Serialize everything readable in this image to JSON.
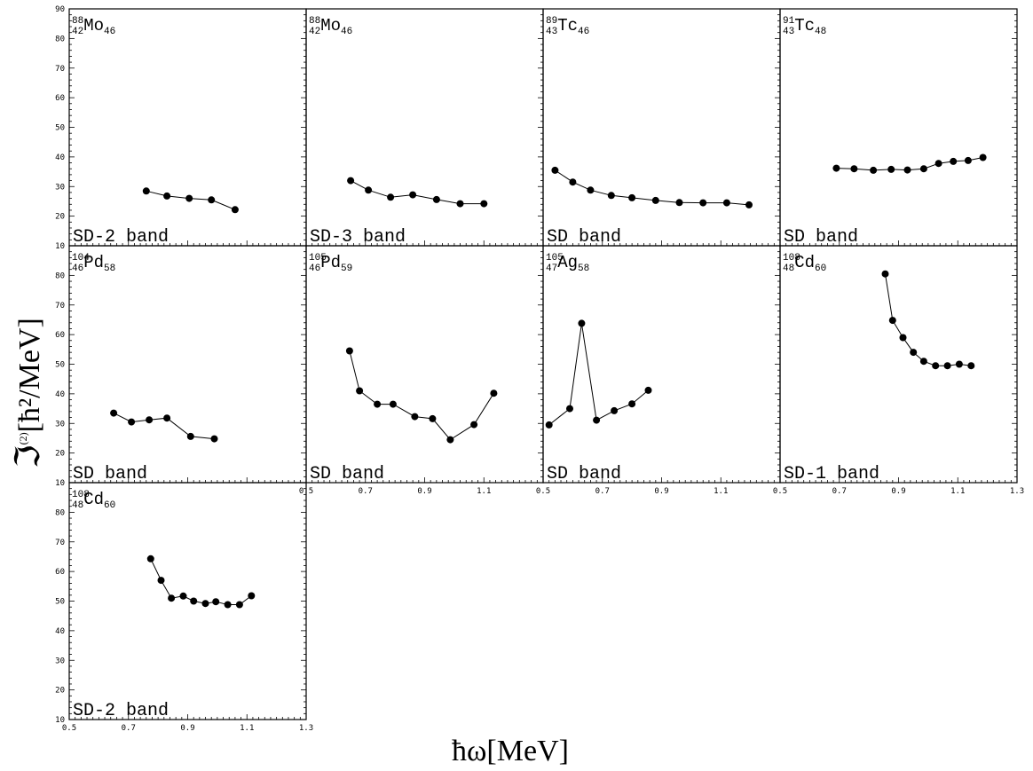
{
  "figure": {
    "xlabel": "ħω[MeV]",
    "ylabel_main": "ℑ",
    "ylabel_sup": "(2)",
    "ylabel_rest": "[ħ²/MeV]",
    "x_ticks": [
      "0.5",
      "0.7",
      "0.9",
      "1.1",
      "1.3"
    ],
    "y_ticks_top": [
      "10",
      "20",
      "30",
      "40",
      "50",
      "60",
      "70",
      "80",
      "90"
    ],
    "y_ticks": [
      "10",
      "20",
      "30",
      "40",
      "50",
      "60",
      "70",
      "80"
    ]
  },
  "chart_data": [
    {
      "type": "line",
      "nucleus": {
        "A": "88",
        "Z": "42",
        "sym": "Mo",
        "N": "46"
      },
      "band": "SD-2 band",
      "xlim": [
        0.5,
        1.3
      ],
      "ylim": [
        10,
        90
      ],
      "x": [
        0.76,
        0.83,
        0.905,
        0.98,
        1.06
      ],
      "y": [
        28.5,
        26.8,
        26.0,
        25.5,
        22.2
      ]
    },
    {
      "type": "line",
      "nucleus": {
        "A": "88",
        "Z": "42",
        "sym": "Mo",
        "N": "46"
      },
      "band": "SD-3 band",
      "xlim": [
        0.5,
        1.3
      ],
      "ylim": [
        10,
        90
      ],
      "x": [
        0.65,
        0.71,
        0.785,
        0.86,
        0.94,
        1.02,
        1.1
      ],
      "y": [
        32.0,
        28.8,
        26.4,
        27.2,
        25.6,
        24.2,
        24.2
      ]
    },
    {
      "type": "line",
      "nucleus": {
        "A": "89",
        "Z": "43",
        "sym": "Tc",
        "N": "46"
      },
      "band": "SD band",
      "xlim": [
        0.5,
        1.3
      ],
      "ylim": [
        10,
        90
      ],
      "x": [
        0.54,
        0.6,
        0.66,
        0.73,
        0.8,
        0.88,
        0.96,
        1.04,
        1.12,
        1.195
      ],
      "y": [
        35.5,
        31.5,
        28.8,
        27.0,
        26.2,
        25.3,
        24.6,
        24.5,
        24.5,
        23.8
      ]
    },
    {
      "type": "line",
      "nucleus": {
        "A": "91",
        "Z": "43",
        "sym": "Tc",
        "N": "48"
      },
      "band": "SD band",
      "xlim": [
        0.5,
        1.3
      ],
      "ylim": [
        10,
        90
      ],
      "x": [
        0.69,
        0.75,
        0.815,
        0.875,
        0.93,
        0.985,
        1.035,
        1.085,
        1.135,
        1.185
      ],
      "y": [
        36.2,
        36.0,
        35.5,
        35.8,
        35.6,
        36.0,
        37.8,
        38.5,
        38.8,
        39.8
      ]
    },
    {
      "type": "line",
      "nucleus": {
        "A": "104",
        "Z": "46",
        "sym": "Pd",
        "N": "58"
      },
      "band": "SD band",
      "xlim": [
        0.5,
        1.3
      ],
      "ylim": [
        10,
        90
      ],
      "x": [
        0.65,
        0.71,
        0.77,
        0.83,
        0.91,
        0.99
      ],
      "y": [
        33.5,
        30.5,
        31.2,
        31.8,
        25.6,
        24.8
      ]
    },
    {
      "type": "line",
      "nucleus": {
        "A": "105",
        "Z": "46",
        "sym": "Pd",
        "N": "59"
      },
      "band": "SD band",
      "xlim": [
        0.5,
        1.1
      ],
      "ylim": [
        10,
        90
      ],
      "x": [
        0.61,
        0.635,
        0.68,
        0.72,
        0.775,
        0.82,
        0.865,
        0.925,
        0.975
      ],
      "y": [
        54.5,
        41.0,
        36.5,
        36.5,
        32.3,
        31.6,
        24.5,
        29.6,
        40.2
      ]
    },
    {
      "type": "line",
      "nucleus": {
        "A": "105",
        "Z": "47",
        "sym": "Ag",
        "N": "58"
      },
      "band": "SD band",
      "xlim": [
        0.5,
        1.3
      ],
      "ylim": [
        10,
        90
      ],
      "x": [
        0.52,
        0.59,
        0.63,
        0.68,
        0.74,
        0.8,
        0.855
      ],
      "y": [
        29.5,
        35.0,
        63.8,
        31.1,
        34.3,
        36.6,
        41.2
      ]
    },
    {
      "type": "line",
      "nucleus": {
        "A": "108",
        "Z": "48",
        "sym": "Cd",
        "N": "60"
      },
      "band": "SD-1 band",
      "xlim": [
        0.5,
        1.3
      ],
      "ylim": [
        10,
        90
      ],
      "x": [
        0.855,
        0.88,
        0.915,
        0.95,
        0.985,
        1.025,
        1.065,
        1.105,
        1.145
      ],
      "y": [
        80.5,
        64.8,
        59.0,
        54.0,
        51.0,
        49.5,
        49.5,
        50.0,
        49.5
      ]
    },
    {
      "type": "line",
      "nucleus": {
        "A": "108",
        "Z": "48",
        "sym": "Cd",
        "N": "60"
      },
      "band": "SD-2 band",
      "xlim": [
        0.5,
        1.3
      ],
      "ylim": [
        10,
        90
      ],
      "x": [
        0.775,
        0.81,
        0.845,
        0.885,
        0.92,
        0.96,
        0.995,
        1.035,
        1.075,
        1.115
      ],
      "y": [
        64.3,
        57.0,
        51.0,
        51.7,
        50.0,
        49.2,
        49.8,
        48.8,
        48.8,
        51.8
      ]
    }
  ]
}
